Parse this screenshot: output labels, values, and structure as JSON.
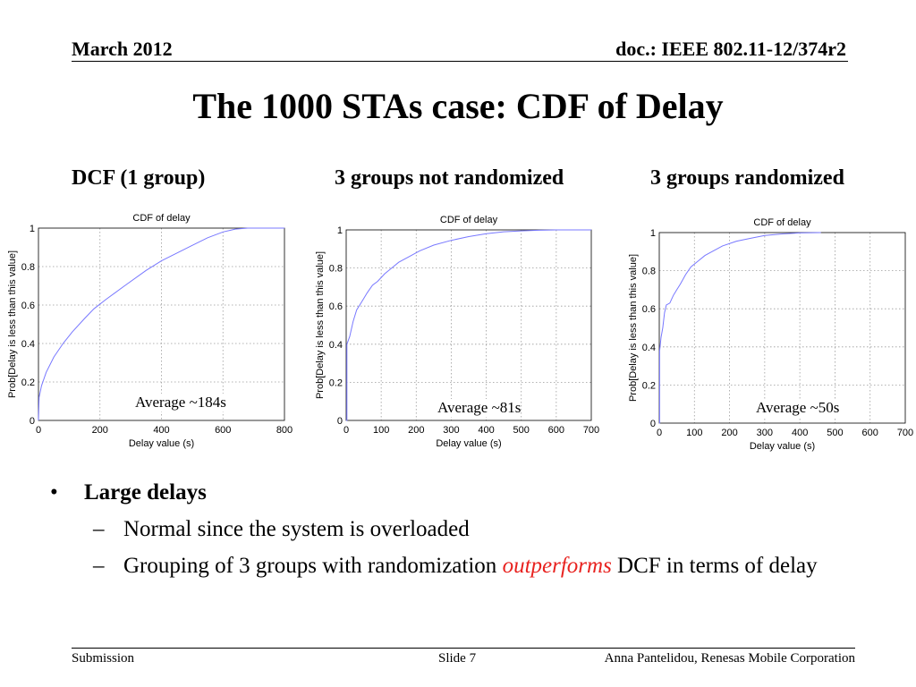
{
  "header": {
    "date": "March 2012",
    "doc": "doc.: IEEE 802.11-12/374r2"
  },
  "title": "The 1000 STAs case: CDF of Delay",
  "chart_titles": [
    "DCF (1 group)",
    "3 groups not randomized",
    "3 groups randomized"
  ],
  "averages": [
    "Average ~184s",
    "Average ~81s",
    "Average ~50s"
  ],
  "bullets": {
    "main": "Large delays",
    "sub1": "Normal since the system is overloaded",
    "sub2_pre": "Grouping of 3 groups with randomization ",
    "sub2_em": "outperforms",
    "sub2_post": " DCF in terms of delay"
  },
  "footer": {
    "left": "Submission",
    "center": "Slide 7",
    "right": "Anna Pantelidou, Renesas Mobile Corporation"
  },
  "colors": {
    "line": "#7878ff",
    "grid": "#9a9a9a",
    "emphasis": "#e8221f"
  },
  "chart_data": [
    {
      "type": "line",
      "title": "CDF of delay",
      "xlabel": "Delay value (s)",
      "ylabel": "Prob[Delay is less than this value]",
      "xlim": [
        0,
        800
      ],
      "ylim": [
        0,
        1
      ],
      "xticks": [
        0,
        200,
        400,
        600,
        800
      ],
      "yticks": [
        0,
        0.2,
        0.4,
        0.6,
        0.8,
        1
      ],
      "grid": true,
      "x": [
        0,
        2,
        10,
        25,
        50,
        80,
        110,
        150,
        180,
        220,
        280,
        350,
        400,
        450,
        500,
        550,
        600,
        640,
        680,
        800
      ],
      "y": [
        0,
        0.12,
        0.18,
        0.25,
        0.33,
        0.4,
        0.46,
        0.53,
        0.58,
        0.63,
        0.7,
        0.78,
        0.83,
        0.87,
        0.91,
        0.95,
        0.98,
        0.995,
        1.0,
        1.0
      ]
    },
    {
      "type": "line",
      "title": "CDF of delay",
      "xlabel": "Delay value (s)",
      "ylabel": "Prob[Delay is less than this value]",
      "xlim": [
        0,
        700
      ],
      "ylim": [
        0,
        1
      ],
      "xticks": [
        0,
        100,
        200,
        300,
        400,
        500,
        600,
        700
      ],
      "yticks": [
        0,
        0.2,
        0.4,
        0.6,
        0.8,
        1
      ],
      "grid": true,
      "x": [
        0,
        2,
        2,
        10,
        20,
        30,
        40,
        50,
        60,
        75,
        90,
        110,
        130,
        150,
        180,
        210,
        250,
        300,
        350,
        400,
        450,
        500,
        550,
        600,
        700
      ],
      "y": [
        0,
        0,
        0.4,
        0.44,
        0.52,
        0.58,
        0.61,
        0.64,
        0.67,
        0.71,
        0.73,
        0.77,
        0.8,
        0.83,
        0.86,
        0.89,
        0.92,
        0.945,
        0.965,
        0.98,
        0.99,
        0.995,
        0.998,
        1.0,
        1.0
      ]
    },
    {
      "type": "line",
      "title": "CDF of delay",
      "xlabel": "Delay value (s)",
      "ylabel": "Prob[Delay is less than this value]",
      "xlim": [
        0,
        700
      ],
      "ylim": [
        0,
        1
      ],
      "xticks": [
        0,
        100,
        200,
        300,
        400,
        500,
        600,
        700
      ],
      "yticks": [
        0,
        0.2,
        0.4,
        0.6,
        0.8,
        1
      ],
      "grid": true,
      "x": [
        0,
        1,
        1,
        5,
        10,
        15,
        20,
        30,
        40,
        50,
        60,
        75,
        90,
        110,
        130,
        150,
        180,
        220,
        260,
        300,
        350,
        400,
        460
      ],
      "y": [
        0,
        0,
        0.38,
        0.45,
        0.5,
        0.58,
        0.62,
        0.63,
        0.67,
        0.7,
        0.73,
        0.78,
        0.82,
        0.85,
        0.88,
        0.9,
        0.93,
        0.955,
        0.97,
        0.985,
        0.993,
        0.998,
        1.0
      ]
    }
  ]
}
